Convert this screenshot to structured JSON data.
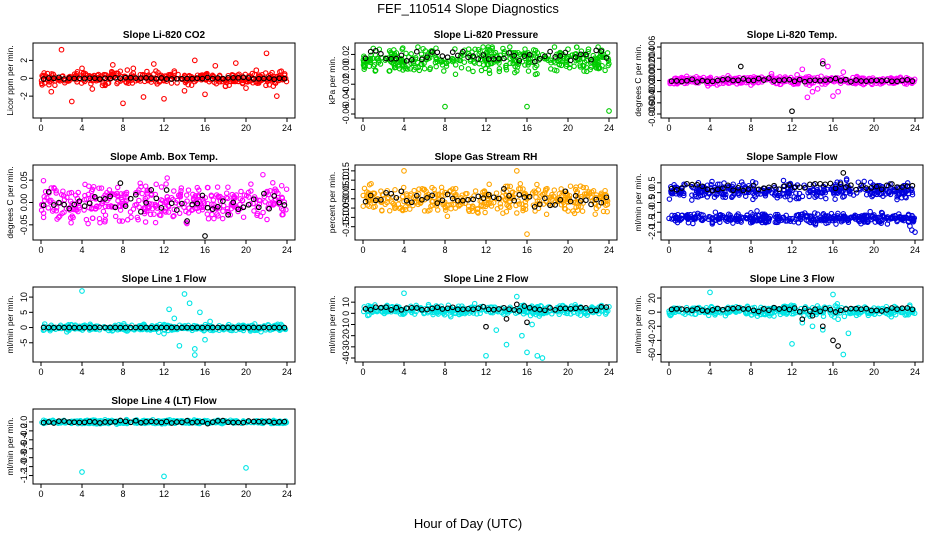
{
  "title": "FEF_110514  Slope Diagnostics",
  "xlabel": "Hour of Day (UTC)",
  "colors": {
    "co2": "#ff0000",
    "pressure": "#00cc00",
    "temp": "#ff00ff",
    "box_temp": "#ff00ff",
    "rh": "#ffa500",
    "sample_flow": "#0000dd",
    "line_flow": "#00e5e5",
    "reference": "#000000"
  },
  "chart_data": [
    {
      "type": "scatter",
      "title": "Slope Li-820 CO2",
      "ylabel": "Licor ppm per min.",
      "xlim": [
        0,
        24
      ],
      "ylim": [
        -4,
        3.5
      ],
      "x_ticks": [
        "0",
        "4",
        "8",
        "12",
        "16",
        "20",
        "24"
      ],
      "y_ticks": [
        {
          "v": -2,
          "l": "-2"
        },
        {
          "v": 0,
          "l": "0"
        },
        {
          "v": 2,
          "l": "2"
        }
      ],
      "series": [
        {
          "color": "co2",
          "center": 0,
          "spread": 0.5,
          "x": [
            2,
            3,
            5,
            7,
            8,
            9,
            10,
            11,
            12,
            13,
            14,
            15,
            16,
            17,
            18,
            19,
            20,
            21,
            22,
            23,
            1,
            6,
            4
          ],
          "y": [
            3.2,
            -2.6,
            -1.2,
            1.5,
            -2.8,
            1.1,
            -2.1,
            1.6,
            -2.3,
            0.8,
            -1.4,
            2.0,
            -1.8,
            1.4,
            -0.9,
            1.7,
            -1.1,
            0.9,
            2.8,
            -2.0,
            -1.5,
            -0.8,
            1.1
          ]
        },
        {
          "color": "reference",
          "center": 0,
          "spread": 0.08
        }
      ]
    },
    {
      "type": "scatter",
      "title": "Slope Li-820 Pressure",
      "ylabel": "kPa per min.",
      "xlim": [
        0,
        24
      ],
      "ylim": [
        -0.06,
        0.03
      ],
      "x_ticks": [
        "0",
        "4",
        "8",
        "12",
        "16",
        "20",
        "24"
      ],
      "y_ticks": [
        {
          "v": -0.06,
          "l": "-0.06"
        },
        {
          "v": -0.04,
          "l": "-0.04"
        },
        {
          "v": -0.02,
          "l": "-0.02"
        },
        {
          "v": 0,
          "l": "0.00"
        },
        {
          "v": 0.02,
          "l": "0.02"
        }
      ],
      "series": [
        {
          "color": "pressure",
          "center": 0.012,
          "spread": 0.012,
          "x": [
            1,
            8,
            16,
            24,
            3,
            20,
            22,
            23
          ],
          "y": [
            0.028,
            -0.05,
            -0.05,
            -0.056,
            0.026,
            0.027,
            0.027,
            0.003
          ]
        },
        {
          "color": "reference",
          "center": 0.018,
          "spread": 0.006
        }
      ]
    },
    {
      "type": "scatter",
      "title": "Slope Li-820 Temp.",
      "ylabel": "degrees C per min.",
      "xlim": [
        0,
        24
      ],
      "ylim": [
        -0.006,
        0.006
      ],
      "x_ticks": [
        "0",
        "4",
        "8",
        "12",
        "16",
        "20",
        "24"
      ],
      "y_ticks": [
        {
          "v": -0.006,
          "l": "-0.006"
        },
        {
          "v": -0.004,
          "l": "-0.004"
        },
        {
          "v": -0.002,
          "l": "-0.002"
        },
        {
          "v": 0,
          "l": "0.000"
        },
        {
          "v": 0.002,
          "l": "0.002"
        },
        {
          "v": 0.004,
          "l": "0.004"
        },
        {
          "v": 0.006,
          "l": "0.006"
        }
      ],
      "series": [
        {
          "color": "temp",
          "center": 0,
          "spread": 0.0005,
          "x": [
            13,
            14,
            15,
            16,
            17,
            13.5,
            15.5,
            14.5,
            16.5,
            12.5,
            10,
            8
          ],
          "y": [
            0.002,
            -0.002,
            0.0035,
            -0.0028,
            0.0015,
            -0.003,
            0.0025,
            -0.0015,
            -0.002,
            0.001,
            0.0012,
            -0.0008
          ]
        },
        {
          "color": "reference",
          "center": 0,
          "spread": 0.0003,
          "x": [
            12,
            7,
            15
          ],
          "y": [
            -0.0055,
            0.0025,
            0.003
          ]
        }
      ]
    },
    {
      "type": "scatter",
      "title": "Slope Amb. Box Temp.",
      "ylabel": "degrees C per min.",
      "xlim": [
        0,
        24
      ],
      "ylim": [
        -0.075,
        0.075
      ],
      "x_ticks": [
        "0",
        "4",
        "8",
        "12",
        "16",
        "20",
        "24"
      ],
      "y_ticks": [
        {
          "v": -0.05,
          "l": "-0.05"
        },
        {
          "v": 0,
          "l": "0.00"
        },
        {
          "v": 0.05,
          "l": "0.05"
        }
      ],
      "series": [
        {
          "color": "box_temp",
          "center": 0,
          "spread": 0.03
        },
        {
          "color": "reference",
          "center": 0,
          "spread": 0.022,
          "x": [
            16
          ],
          "y": [
            -0.075
          ]
        }
      ]
    },
    {
      "type": "scatter",
      "title": "Slope Gas Stream RH",
      "ylabel": "percent per min.",
      "xlim": [
        0,
        24
      ],
      "ylim": [
        -0.2,
        0.16
      ],
      "x_ticks": [
        "0",
        "4",
        "8",
        "12",
        "16",
        "20",
        "24"
      ],
      "y_ticks": [
        {
          "v": -0.15,
          "l": "-0.15"
        },
        {
          "v": -0.1,
          "l": "-0.10"
        },
        {
          "v": -0.05,
          "l": "-0.05"
        },
        {
          "v": 0,
          "l": "0.00"
        },
        {
          "v": 0.05,
          "l": "0.05"
        },
        {
          "v": 0.1,
          "l": "0.10"
        },
        {
          "v": 0.15,
          "l": "0.15"
        }
      ],
      "series": [
        {
          "color": "rh",
          "center": 0,
          "spread": 0.055,
          "x": [
            4,
            15,
            16
          ],
          "y": [
            0.15,
            0.15,
            -0.19
          ]
        },
        {
          "color": "reference",
          "center": 0,
          "spread": 0.035
        }
      ]
    },
    {
      "type": "scatter",
      "title": "Slope Sample Flow",
      "ylabel": "ml/min per min.",
      "xlim": [
        0,
        24
      ],
      "ylim": [
        -2.2,
        1.2
      ],
      "x_ticks": [
        "0",
        "4",
        "8",
        "12",
        "16",
        "20",
        "24"
      ],
      "y_ticks": [
        {
          "v": -2,
          "l": "-2.0"
        },
        {
          "v": -1.5,
          "l": "-1.5"
        },
        {
          "v": -1,
          "l": "-1.0"
        },
        {
          "v": -0.5,
          "l": "-0.5"
        },
        {
          "v": 0,
          "l": "0.0"
        },
        {
          "v": 0.5,
          "l": "0.5"
        }
      ],
      "series": [
        {
          "color": "sample_flow",
          "center": 0.1,
          "spread": 0.3
        },
        {
          "color": "sample_flow",
          "center": -1.3,
          "spread": 0.18,
          "x": [
            24,
            23.7,
            23.5
          ],
          "y": [
            -2.0,
            -1.9,
            -1.7
          ]
        },
        {
          "color": "reference",
          "center": 0.3,
          "spread": 0.15,
          "x": [
            17
          ],
          "y": [
            1.0
          ]
        }
      ]
    },
    {
      "type": "scatter",
      "title": "Slope Line 1 Flow",
      "ylabel": "ml/min per min.",
      "xlim": [
        0,
        24
      ],
      "ylim": [
        -10,
        12
      ],
      "x_ticks": [
        "0",
        "4",
        "8",
        "12",
        "16",
        "20",
        "24"
      ],
      "y_ticks": [
        {
          "v": -5,
          "l": "-5"
        },
        {
          "v": 0,
          "l": "0"
        },
        {
          "v": 5,
          "l": "5"
        },
        {
          "v": 10,
          "l": "10"
        }
      ],
      "series": [
        {
          "color": "line_flow",
          "center": 0,
          "spread": 0.8,
          "x": [
            4,
            14,
            15,
            15.5,
            13,
            12,
            16,
            14.5,
            13.5,
            16.5,
            15,
            12.5
          ],
          "y": [
            12,
            11,
            -9,
            5,
            3,
            -2,
            -4,
            8,
            -6,
            2,
            -7,
            6
          ]
        },
        {
          "color": "reference",
          "center": 0,
          "spread": 0.01
        }
      ]
    },
    {
      "type": "scatter",
      "title": "Slope Line 2 Flow",
      "ylabel": "ml/min per min.",
      "xlim": [
        0,
        24
      ],
      "ylim": [
        -40,
        20
      ],
      "x_ticks": [
        "0",
        "4",
        "8",
        "12",
        "16",
        "20",
        "24"
      ],
      "y_ticks": [
        {
          "v": -40,
          "l": "-40"
        },
        {
          "v": -30,
          "l": "-30"
        },
        {
          "v": -20,
          "l": "-20"
        },
        {
          "v": -10,
          "l": "-10"
        },
        {
          "v": 0,
          "l": "0"
        },
        {
          "v": 10,
          "l": "10"
        }
      ],
      "series": [
        {
          "color": "line_flow",
          "center": 3,
          "spread": 3,
          "x": [
            4,
            12,
            14,
            15,
            16,
            17,
            17.5,
            13,
            15.5,
            16.5
          ],
          "y": [
            18,
            -38,
            -28,
            15,
            -35,
            -38,
            -40,
            -15,
            -20,
            -10
          ]
        },
        {
          "color": "reference",
          "center": 4,
          "spread": 1.5,
          "x": [
            14,
            15,
            12,
            16
          ],
          "y": [
            -5,
            8,
            -12,
            -8
          ]
        }
      ]
    },
    {
      "type": "scatter",
      "title": "Slope Line 3 Flow",
      "ylabel": "ml/min per min.",
      "xlim": [
        0,
        24
      ],
      "ylim": [
        -65,
        30
      ],
      "x_ticks": [
        "0",
        "4",
        "8",
        "12",
        "16",
        "20",
        "24"
      ],
      "y_ticks": [
        {
          "v": -60,
          "l": "-60"
        },
        {
          "v": -40,
          "l": "-40"
        },
        {
          "v": -20,
          "l": "-20"
        },
        {
          "v": 0,
          "l": "0"
        },
        {
          "v": 20,
          "l": "20"
        }
      ],
      "series": [
        {
          "color": "line_flow",
          "center": 2,
          "spread": 5,
          "x": [
            4,
            12,
            16,
            17,
            15,
            14,
            13,
            16.5,
            17.5
          ],
          "y": [
            28,
            -45,
            25,
            -60,
            -25,
            -20,
            -15,
            -10,
            -30
          ]
        },
        {
          "color": "reference",
          "center": 4,
          "spread": 2,
          "x": [
            13,
            14,
            15,
            16,
            16.5
          ],
          "y": [
            -10,
            -5,
            -20,
            -40,
            -48
          ]
        }
      ]
    },
    {
      "type": "scatter",
      "title": "Slope Line 4 (LT) Flow",
      "ylabel": "ml/min per min.",
      "xlim": [
        0,
        24
      ],
      "ylim": [
        -1.3,
        0.2
      ],
      "x_ticks": [
        "0",
        "4",
        "8",
        "12",
        "16",
        "20",
        "24"
      ],
      "y_ticks": [
        {
          "v": -1.2,
          "l": "-1.2"
        },
        {
          "v": -1,
          "l": "-1.0"
        },
        {
          "v": -0.8,
          "l": "-0.8"
        },
        {
          "v": -0.6,
          "l": "-0.6"
        },
        {
          "v": -0.4,
          "l": "-0.4"
        },
        {
          "v": -0.2,
          "l": "-0.2"
        },
        {
          "v": 0,
          "l": "0.0"
        }
      ],
      "series": [
        {
          "color": "line_flow",
          "center": 0,
          "spread": 0.03,
          "x": [
            4,
            12,
            20
          ],
          "y": [
            -1.12,
            -1.22,
            -1.03
          ]
        },
        {
          "color": "reference",
          "center": 0,
          "spread": 0.02
        }
      ]
    }
  ]
}
